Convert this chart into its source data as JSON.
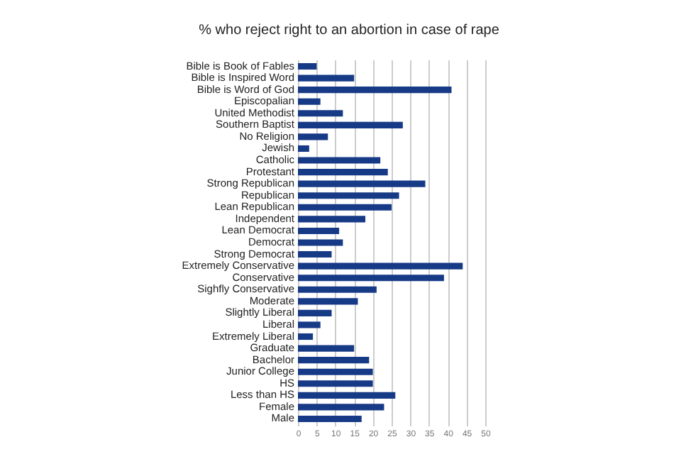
{
  "chart_data": {
    "type": "bar",
    "orientation": "horizontal",
    "title": "% who reject right to an abortion in case of rape",
    "categories": [
      "Bible is Book of Fables",
      "Bible is Inspired Word",
      "Bible is Word of God",
      "Episcopalian",
      "United Methodist",
      "Southern Baptist",
      "No Religion",
      "Jewish",
      "Catholic",
      "Protestant",
      "Strong Republican",
      "Republican",
      "Lean Republican",
      "Independent",
      "Lean Democrat",
      "Democrat",
      "Strong Democrat",
      "Extremely Conservative",
      "Conservative",
      "Sighfly Conservative",
      "Moderate",
      "Slightly Liberal",
      "Liberal",
      "Extremely Liberal",
      "Graduate",
      "Bachelor",
      "Junior College",
      "HS",
      "Less than HS",
      "Female",
      "Male"
    ],
    "values": [
      5,
      15,
      41,
      6,
      12,
      28,
      8,
      3,
      22,
      24,
      34,
      27,
      25,
      18,
      11,
      12,
      9,
      44,
      39,
      21,
      16,
      9,
      6,
      4,
      15,
      19,
      20,
      20,
      26,
      23,
      17
    ],
    "color": "#173a87",
    "xlim": [
      0,
      50
    ],
    "xticks": [
      0,
      5,
      10,
      15,
      20,
      25,
      30,
      35,
      40,
      45,
      50
    ],
    "grid": "x"
  }
}
